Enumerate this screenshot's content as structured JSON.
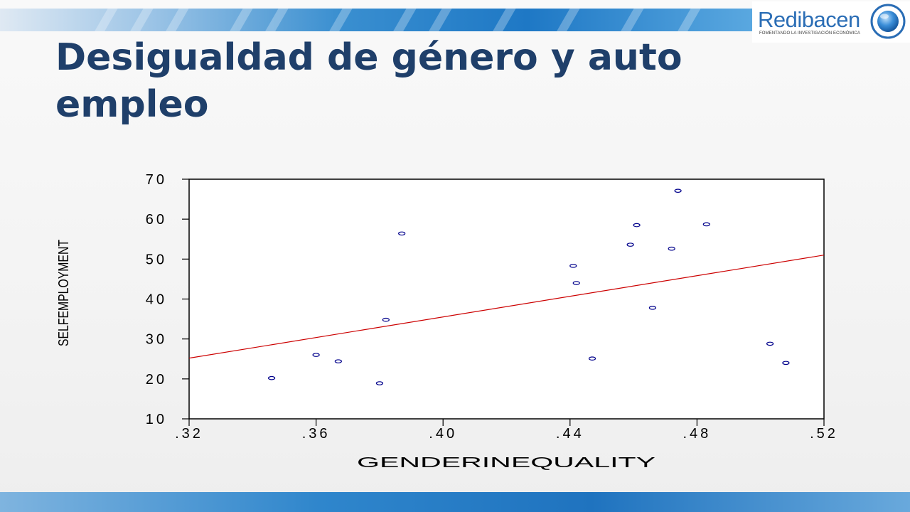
{
  "slide": {
    "title": "Desigualdad de género y auto empleo"
  },
  "logo": {
    "name": "Redibacen",
    "tagline": "FOMENTANDO LA INVESTIGACIÓN ECONÓMICA"
  },
  "colors": {
    "title": "#1f3f6a",
    "points": "#00008b",
    "fit_line": "#cc0000",
    "accent": "#1f78c5"
  },
  "chart_data": {
    "type": "scatter",
    "xlabel": "GENDERINEQUALITY",
    "ylabel": "SELFEMPLOYMENT",
    "xlim": [
      0.32,
      0.52
    ],
    "ylim": [
      10,
      70
    ],
    "x_ticks": [
      ".32",
      ".36",
      ".40",
      ".44",
      ".48",
      ".52"
    ],
    "y_ticks": [
      "70",
      "60",
      "50",
      "40",
      "30",
      "20",
      "10"
    ],
    "points": [
      {
        "x": 0.346,
        "y": 20.2
      },
      {
        "x": 0.36,
        "y": 26.0
      },
      {
        "x": 0.367,
        "y": 24.4
      },
      {
        "x": 0.38,
        "y": 18.9
      },
      {
        "x": 0.382,
        "y": 34.8
      },
      {
        "x": 0.387,
        "y": 56.4
      },
      {
        "x": 0.441,
        "y": 48.3
      },
      {
        "x": 0.442,
        "y": 44.0
      },
      {
        "x": 0.447,
        "y": 25.1
      },
      {
        "x": 0.459,
        "y": 53.6
      },
      {
        "x": 0.461,
        "y": 58.5
      },
      {
        "x": 0.466,
        "y": 37.8
      },
      {
        "x": 0.472,
        "y": 52.6
      },
      {
        "x": 0.474,
        "y": 67.1
      },
      {
        "x": 0.483,
        "y": 58.7
      },
      {
        "x": 0.503,
        "y": 28.8
      },
      {
        "x": 0.508,
        "y": 24.0
      }
    ],
    "fit_line": {
      "x": [
        0.32,
        0.52
      ],
      "y": [
        25.2,
        51.0
      ]
    }
  }
}
